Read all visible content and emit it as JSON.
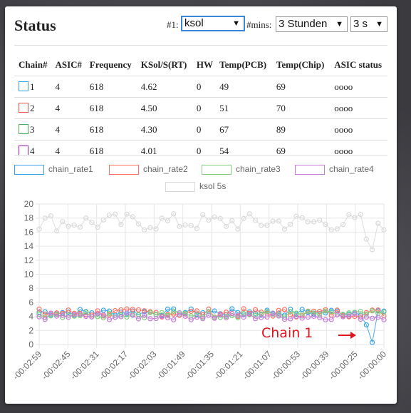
{
  "header": {
    "title": "Status",
    "miner_label": "#1:",
    "miner_value": "ksol",
    "mins_label": "#mins:",
    "range_value": "3 Stunden",
    "interval_value": "3 s"
  },
  "table": {
    "columns": [
      "Chain#",
      "ASIC#",
      "Frequency",
      "KSol/S(RT)",
      "HW",
      "Temp(PCB)",
      "Temp(Chip)",
      "ASIC status"
    ],
    "rows": [
      {
        "chain": "1",
        "asic": "4",
        "freq": "618",
        "ksol": "4.62",
        "hw": "0",
        "pcb": "49",
        "chip": "69",
        "status": "oooo",
        "color": "#36a2eb"
      },
      {
        "chain": "2",
        "asic": "4",
        "freq": "618",
        "ksol": "4.50",
        "hw": "0",
        "pcb": "51",
        "chip": "70",
        "status": "oooo",
        "color": "#e8534a"
      },
      {
        "chain": "3",
        "asic": "4",
        "freq": "618",
        "ksol": "4.30",
        "hw": "0",
        "pcb": "67",
        "chip": "89",
        "status": "oooo",
        "color": "#4caf50"
      },
      {
        "chain": "4",
        "asic": "4",
        "freq": "618",
        "ksol": "4.01",
        "hw": "0",
        "pcb": "54",
        "chip": "69",
        "status": "oooo",
        "color": "#9c27b0"
      }
    ]
  },
  "annotation": {
    "text": "Chain 1",
    "color": "#e0141e"
  },
  "chart_data": {
    "type": "line",
    "ylim": [
      0,
      20
    ],
    "yticks": [
      0,
      2,
      4,
      6,
      8,
      10,
      12,
      14,
      16,
      18,
      20
    ],
    "xticks": [
      "-00:02:59",
      "-00:02:45",
      "-00:02:31",
      "-00:02:17",
      "-00:02:03",
      "-00:01:49",
      "-00:01:35",
      "-00:01:21",
      "-00:01:07",
      "-00:00:53",
      "-00:00:39",
      "-00:00:25",
      "-00:00:00"
    ],
    "grid": true,
    "legend_position": "top",
    "series": [
      {
        "name": "chain_rate1",
        "color": "#36a2eb",
        "base": 4.6,
        "amp": 0.5,
        "drop_to": [
          2.8,
          0.3
        ],
        "filled": false
      },
      {
        "name": "chain_rate2",
        "color": "#ff6f61",
        "base": 4.5,
        "amp": 0.6,
        "drop_to": null,
        "filled": false
      },
      {
        "name": "chain_rate3",
        "color": "#7fcf7f",
        "base": 4.3,
        "amp": 0.5,
        "drop_to": null,
        "filled": false
      },
      {
        "name": "chain_rate4",
        "color": "#c67bd9",
        "base": 4.0,
        "amp": 0.5,
        "drop_to": null,
        "filled": false
      },
      {
        "name": "ksol 5s",
        "color": "#d9d9d9",
        "base": 17.4,
        "amp": 1.3,
        "drop_to": [
          15.0,
          13.5
        ],
        "filled": false
      }
    ]
  }
}
